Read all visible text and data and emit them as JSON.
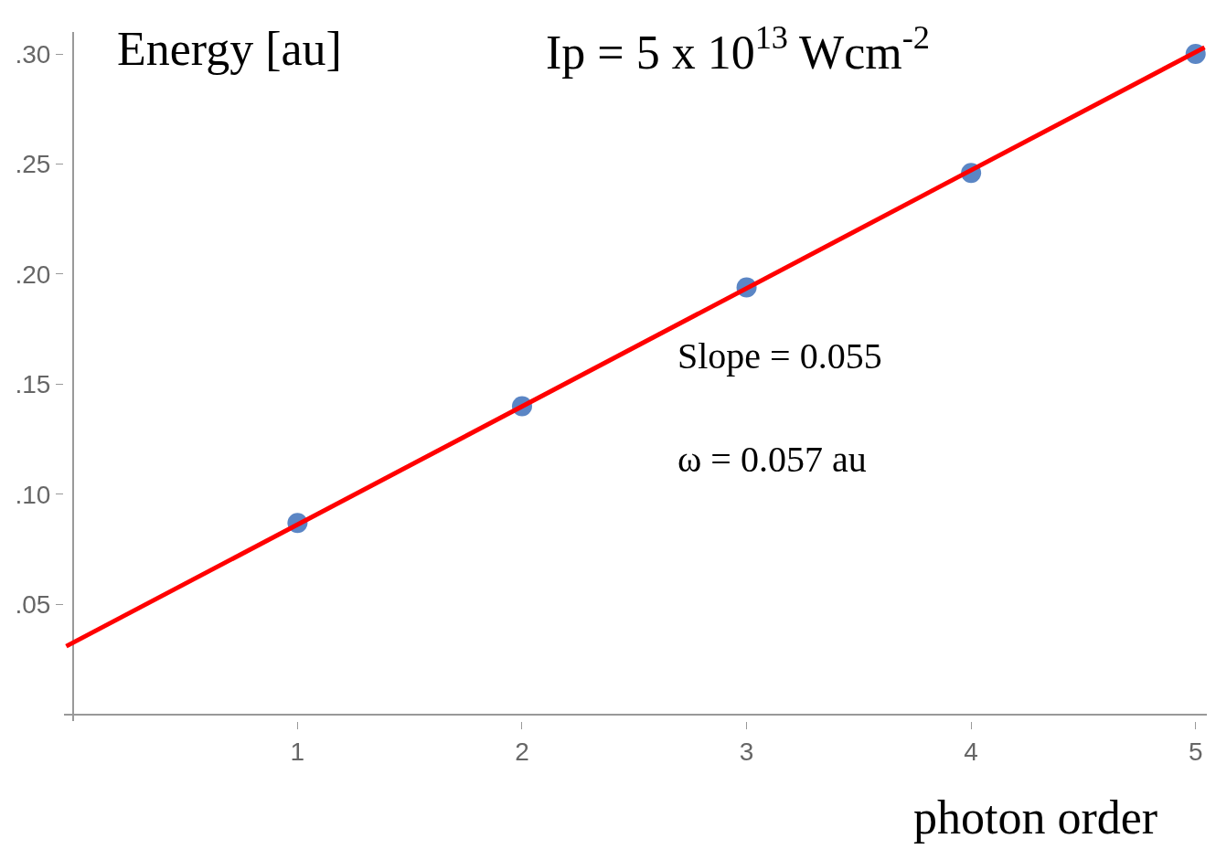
{
  "chart_data": {
    "type": "scatter",
    "title": "Ip = 5 x 10$^{13}$ Wcm$^{-2}$",
    "ylabel": "Energy [au]",
    "xlabel": "photon order",
    "annotations": [
      "Slope = 0.055",
      "ω = 0.057 au"
    ],
    "series": [
      {
        "color": "#5b86c5",
        "x": [
          1,
          2,
          3,
          4,
          5
        ],
        "values": [
          0.087,
          0.14,
          0.194,
          0.246,
          0.3
        ],
        "marker": "circle"
      },
      {
        "type": "line",
        "color": "#ff0000",
        "x": [
          -0.03,
          5.04
        ],
        "values": [
          0.031,
          0.303
        ],
        "marker": "none",
        "line_style": "solid"
      }
    ],
    "xlim": [
      -0.04,
      5.05
    ],
    "ylim": [
      -0.003,
      0.31
    ],
    "xticks": [
      1,
      2,
      3,
      4,
      5
    ],
    "yticks": [
      {
        "value": 0.05,
        "label": ".05"
      },
      {
        "value": 0.1,
        "label": ".10"
      },
      {
        "value": 0.15,
        "label": ".15"
      },
      {
        "value": 0.2,
        "label": ".20"
      },
      {
        "value": 0.25,
        "label": ".25"
      },
      {
        "value": 0.3,
        "label": ".30"
      }
    ]
  }
}
